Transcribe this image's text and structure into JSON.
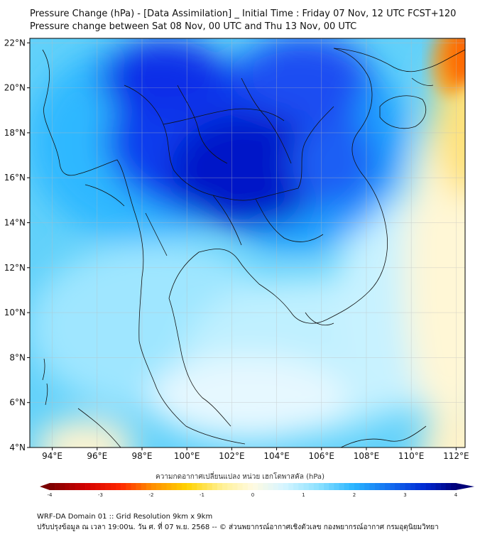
{
  "header": {
    "title_line1": "Pressure Change (hPa) - [Data Assimilation] _ Initial Time : Friday 07 Nov, 12 UTC FCST+120",
    "title_line2": "Pressure change between Sat 08 Nov, 00 UTC and Thu 13 Nov, 00 UTC"
  },
  "map": {
    "lat_labels": [
      "22°N",
      "20°N",
      "18°N",
      "16°N",
      "14°N",
      "12°N",
      "10°N",
      "8°N",
      "6°N",
      "4°N"
    ],
    "lon_labels": [
      "94°E",
      "96°E",
      "98°E",
      "100°E",
      "102°E",
      "104°E",
      "106°E",
      "108°E",
      "110°E",
      "112°E"
    ],
    "lat_values": [
      22,
      20,
      18,
      16,
      14,
      12,
      10,
      8,
      6,
      4
    ],
    "lon_values": [
      94,
      96,
      98,
      100,
      102,
      104,
      106,
      108,
      110,
      112
    ],
    "colors": {
      "strong_negative": "#7a0000",
      "negative": "#ff2a00",
      "weak_negative": "#ffd200",
      "neutral": "#fff8e0",
      "weak_positive": "#8ee3ff",
      "positive": "#1eb4ff",
      "strong_positive": "#0010c0",
      "coast": "#111111",
      "grid": "#bbbbbb"
    }
  },
  "colorbar": {
    "title": "ความกดอากาศเปลี่ยนแปลง หน่วย เฮกโตพาสคัล (hPa)",
    "min": -4,
    "max": 4,
    "tick_labels": [
      "-4",
      "-3",
      "-2",
      "-1",
      "0",
      "1",
      "2",
      "3",
      "4"
    ]
  },
  "footer": {
    "line1": "WRF-DA Domain 01 :: Grid Resolution 9km x 9km",
    "line2": "ปรับปรุงข้อมูล ณ เวลา 19:00น. วัน ศ. ที่ 07 พ.ย. 2568 -- © ส่วนพยากรณ์อากาศเชิงตัวเลข กองพยากรณ์อากาศ กรมอุตุนิยมวิทยา"
  }
}
